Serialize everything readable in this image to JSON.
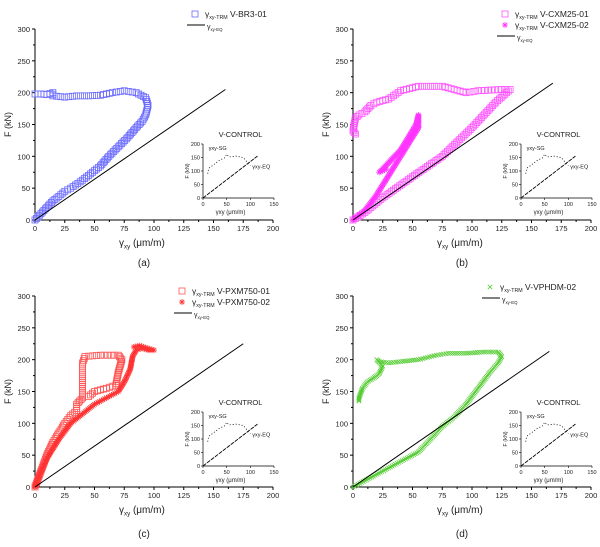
{
  "chart_data": [
    {
      "type": "scatter",
      "caption": "(a)",
      "xlabel": {
        "symbol": "γ",
        "sub": "xy",
        "unit": " (μm/m)"
      },
      "ylabel": "F (kN)",
      "xlim": [
        0,
        200
      ],
      "ylim": [
        0,
        300
      ],
      "xticks": [
        0,
        25,
        50,
        75,
        100,
        125,
        150,
        175,
        200
      ],
      "yticks": [
        0,
        50,
        100,
        150,
        200,
        250,
        300
      ],
      "series": [
        {
          "symbol": "γ",
          "sub": "xy-TRM",
          "name": " V-BR3-01",
          "marker": "square",
          "color": "#6a6aff",
          "points": [
            [
              0,
              0
            ],
            [
              5,
              10
            ],
            [
              10,
              20
            ],
            [
              15,
              30
            ],
            [
              20,
              37
            ],
            [
              25,
              45
            ],
            [
              30,
              50
            ],
            [
              38,
              60
            ],
            [
              45,
              70
            ],
            [
              55,
              85
            ],
            [
              62,
              100
            ],
            [
              70,
              115
            ],
            [
              78,
              130
            ],
            [
              85,
              145
            ],
            [
              90,
              155
            ],
            [
              93,
              165
            ],
            [
              95,
              180
            ],
            [
              93,
              192
            ],
            [
              85,
              200
            ],
            [
              75,
              203
            ],
            [
              65,
              200
            ],
            [
              55,
              196
            ],
            [
              45,
              195
            ],
            [
              35,
              195
            ],
            [
              25,
              193
            ],
            [
              15,
              195
            ],
            [
              15,
              200
            ],
            [
              10,
              197
            ],
            [
              5,
              198
            ],
            [
              0,
              198
            ]
          ]
        },
        {
          "symbol": "γ",
          "sub": "xy-EQ",
          "name": "",
          "marker": "line",
          "color": "#000000",
          "points": [
            [
              0,
              0
            ],
            [
              160,
              205
            ]
          ]
        }
      ],
      "inset": true
    },
    {
      "type": "scatter",
      "caption": "(b)",
      "xlabel": {
        "symbol": "γ",
        "sub": "xy",
        "unit": " (μm/m)"
      },
      "ylabel": "F (kN)",
      "xlim": [
        0,
        200
      ],
      "ylim": [
        0,
        300
      ],
      "xticks": [
        0,
        25,
        50,
        75,
        100,
        125,
        150,
        175,
        200
      ],
      "yticks": [
        0,
        50,
        100,
        150,
        200,
        250,
        300
      ],
      "series": [
        {
          "symbol": "γ",
          "sub": "xy-TRM",
          "name": " V-CXM25-01",
          "marker": "square",
          "color": "#ff55ff",
          "points": [
            [
              0,
              0
            ],
            [
              10,
              12
            ],
            [
              25,
              35
            ],
            [
              50,
              68
            ],
            [
              75,
              100
            ],
            [
              100,
              145
            ],
            [
              120,
              185
            ],
            [
              132,
              205
            ],
            [
              125,
              205
            ],
            [
              105,
              203
            ],
            [
              95,
              200
            ],
            [
              85,
              205
            ],
            [
              75,
              210
            ],
            [
              65,
              210
            ],
            [
              55,
              210
            ],
            [
              40,
              203
            ],
            [
              30,
              190
            ],
            [
              20,
              185
            ],
            [
              15,
              180
            ],
            [
              10,
              170
            ],
            [
              5,
              165
            ],
            [
              2,
              160
            ],
            [
              0,
              140
            ],
            [
              2,
              135
            ]
          ]
        },
        {
          "symbol": "γ",
          "sub": "xy-TRM",
          "name": " V-CXM25-02",
          "marker": "star",
          "color": "#ff33ff",
          "points": [
            [
              0,
              0
            ],
            [
              10,
              15
            ],
            [
              20,
              40
            ],
            [
              30,
              70
            ],
            [
              40,
              100
            ],
            [
              50,
              130
            ],
            [
              55,
              145
            ],
            [
              55,
              165
            ],
            [
              53,
              150
            ],
            [
              45,
              125
            ],
            [
              40,
              110
            ],
            [
              35,
              100
            ],
            [
              30,
              90
            ],
            [
              25,
              80
            ],
            [
              22,
              75
            ],
            [
              28,
              80
            ]
          ]
        },
        {
          "symbol": "γ",
          "sub": "xy-EQ",
          "name": "",
          "marker": "line",
          "color": "#000000",
          "points": [
            [
              0,
              0
            ],
            [
              168,
              215
            ]
          ]
        }
      ],
      "inset": true
    },
    {
      "type": "scatter",
      "caption": "(c)",
      "xlabel": {
        "symbol": "γ",
        "sub": "xy",
        "unit": " (μm/m)"
      },
      "ylabel": "F (kN)",
      "xlim": [
        0,
        200
      ],
      "ylim": [
        0,
        300
      ],
      "xticks": [
        0,
        25,
        50,
        75,
        100,
        125,
        150,
        175,
        200
      ],
      "yticks": [
        0,
        50,
        100,
        150,
        200,
        250,
        300
      ],
      "series": [
        {
          "symbol": "γ",
          "sub": "xy-TRM",
          "name": " V-PXM750-01",
          "marker": "square",
          "color": "#ff5555",
          "points": [
            [
              0,
              0
            ],
            [
              5,
              25
            ],
            [
              10,
              50
            ],
            [
              15,
              70
            ],
            [
              20,
              85
            ],
            [
              25,
              100
            ],
            [
              30,
              112
            ],
            [
              35,
              120
            ],
            [
              35,
              130
            ],
            [
              40,
              140
            ],
            [
              40,
              170
            ],
            [
              40,
              195
            ],
            [
              42,
              205
            ],
            [
              55,
              207
            ],
            [
              70,
              207
            ],
            [
              73,
              200
            ],
            [
              70,
              180
            ],
            [
              68,
              160
            ],
            [
              60,
              155
            ],
            [
              50,
              150
            ],
            [
              45,
              142
            ]
          ]
        },
        {
          "symbol": "γ",
          "sub": "xy-TRM",
          "name": " V-PXM750-02",
          "marker": "star",
          "color": "#ff3333",
          "points": [
            [
              0,
              0
            ],
            [
              5,
              25
            ],
            [
              10,
              45
            ],
            [
              20,
              75
            ],
            [
              30,
              100
            ],
            [
              40,
              115
            ],
            [
              50,
              130
            ],
            [
              60,
              140
            ],
            [
              70,
              150
            ],
            [
              75,
              165
            ],
            [
              80,
              185
            ],
            [
              82,
              205
            ],
            [
              85,
              215
            ],
            [
              90,
              218
            ],
            [
              95,
              215
            ],
            [
              100,
              215
            ],
            [
              88,
              222
            ],
            [
              83,
              220
            ]
          ]
        },
        {
          "symbol": "γ",
          "sub": "xy-EQ",
          "name": "",
          "marker": "line",
          "color": "#000000",
          "points": [
            [
              0,
              0
            ],
            [
              175,
              225
            ]
          ]
        }
      ],
      "inset": true
    },
    {
      "type": "scatter",
      "caption": "(d)",
      "xlabel": {
        "symbol": "γ",
        "sub": "xy",
        "unit": " (μm/m)"
      },
      "ylabel": "F (kN)",
      "xlim": [
        0,
        200
      ],
      "ylim": [
        0,
        300
      ],
      "xticks": [
        0,
        25,
        50,
        75,
        100,
        125,
        150,
        175,
        200
      ],
      "yticks": [
        0,
        50,
        100,
        150,
        200,
        250,
        300
      ],
      "series": [
        {
          "symbol": "γ",
          "sub": "xy-TRM",
          "name": " V-VPHDM-02",
          "marker": "cross",
          "color": "#55cc33",
          "points": [
            [
              0,
              0
            ],
            [
              10,
              10
            ],
            [
              20,
              20
            ],
            [
              40,
              40
            ],
            [
              55,
              55
            ],
            [
              65,
              75
            ],
            [
              75,
              95
            ],
            [
              85,
              110
            ],
            [
              95,
              130
            ],
            [
              105,
              155
            ],
            [
              115,
              180
            ],
            [
              122,
              195
            ],
            [
              125,
              205
            ],
            [
              122,
              212
            ],
            [
              110,
              212
            ],
            [
              95,
              210
            ],
            [
              80,
              210
            ],
            [
              70,
              207
            ],
            [
              55,
              200
            ],
            [
              40,
              197
            ],
            [
              30,
              195
            ],
            [
              22,
              197
            ],
            [
              20,
              200
            ],
            [
              25,
              190
            ],
            [
              22,
              178
            ],
            [
              18,
              172
            ],
            [
              12,
              165
            ],
            [
              8,
              155
            ],
            [
              5,
              140
            ],
            [
              5,
              135
            ]
          ]
        },
        {
          "symbol": "γ",
          "sub": "xy-EQ",
          "name": "",
          "marker": "line",
          "color": "#000000",
          "points": [
            [
              0,
              0
            ],
            [
              165,
              213
            ]
          ]
        }
      ],
      "inset": true
    }
  ],
  "inset": {
    "title": "V-CONTROL",
    "ylabel": "F (kN)",
    "xlabel": "γxy (μm/m)",
    "xlim": [
      0,
      150
    ],
    "ylim": [
      0,
      200
    ],
    "xticks": [
      0,
      50,
      100,
      150
    ],
    "yticks": [
      0,
      50,
      100,
      150,
      200
    ],
    "sg_label": "γxy-SG",
    "eq_label": "γxy-EQ",
    "sg_points": [
      [
        10,
        90
      ],
      [
        12,
        110
      ],
      [
        20,
        120
      ],
      [
        35,
        140
      ],
      [
        45,
        148
      ],
      [
        50,
        162
      ],
      [
        55,
        152
      ],
      [
        70,
        155
      ],
      [
        85,
        150
      ],
      [
        90,
        140
      ],
      [
        95,
        128
      ],
      [
        100,
        120
      ]
    ],
    "eq_points": [
      [
        0,
        0
      ],
      [
        115,
        155
      ]
    ]
  }
}
